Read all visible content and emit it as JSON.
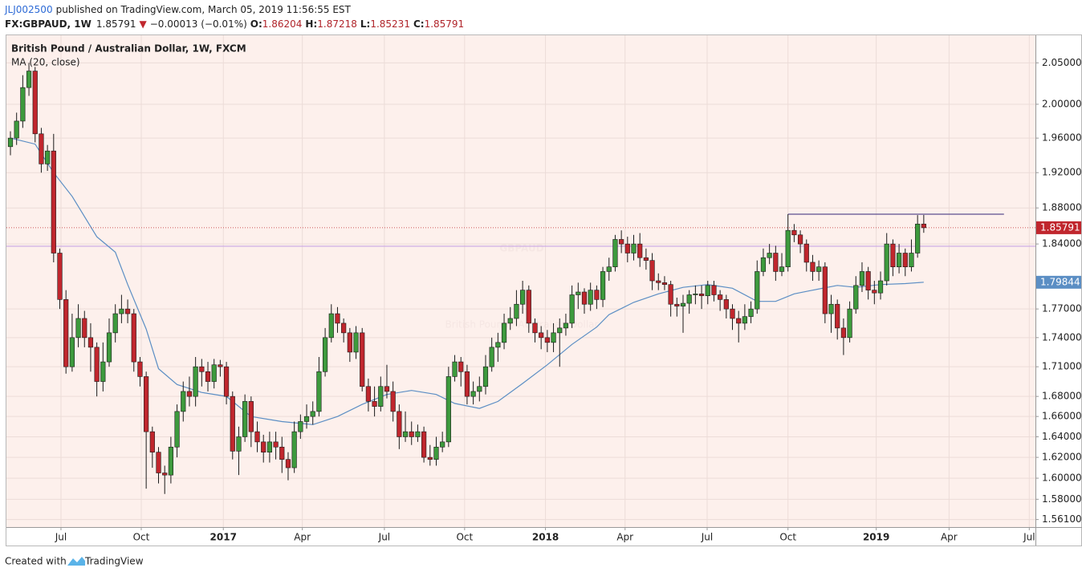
{
  "header": {
    "author": "JLJ002500",
    "published": "published on TradingView.com, March 05, 2019 11:56:55 EST",
    "symbol": "FX:GBPAUD, 1W",
    "arrow": "▼",
    "change": "−0.00013 (−0.01%)",
    "ohlc_labels": [
      "O:",
      "H:",
      "L:",
      "C:"
    ]
  },
  "chart_data": {
    "type": "candlestick",
    "title": "British Pound / Australian Dollar, 1W, FXCM",
    "watermark": "GBPAUD",
    "watermark_subtitle": "British Pound / Australian Dollar",
    "up_color": "#3d9a3d",
    "down_color": "#c0262d",
    "open": [
      1.95,
      1.96,
      1.98,
      2.02,
      2.04,
      1.965,
      1.93,
      1.945,
      1.83,
      1.78,
      1.71,
      1.74,
      1.76,
      1.74,
      1.73,
      1.695,
      1.715,
      1.745,
      1.765,
      1.77,
      1.765,
      1.715,
      1.7,
      1.645,
      1.625,
      1.605,
      1.603,
      1.63,
      1.665,
      1.685,
      1.68,
      1.71,
      1.705,
      1.695,
      1.712,
      1.71,
      1.68,
      1.626,
      1.64,
      1.675,
      1.645,
      1.635,
      1.625,
      1.635,
      1.63,
      1.618,
      1.61,
      1.645,
      1.655,
      1.66,
      1.665,
      1.705,
      1.74,
      1.765,
      1.755,
      1.745,
      1.725,
      1.745,
      1.69,
      1.675,
      1.67,
      1.69,
      1.685,
      1.665,
      1.64,
      1.645,
      1.64,
      1.645,
      1.62,
      1.618,
      1.63,
      1.635,
      1.7,
      1.715,
      1.705,
      1.68,
      1.685,
      1.69,
      1.71,
      1.73,
      1.735,
      1.755,
      1.76,
      1.775,
      1.79,
      1.755,
      1.745,
      1.74,
      1.735,
      1.745,
      1.75,
      1.755,
      1.785,
      1.788,
      1.775,
      1.79,
      1.78,
      1.81,
      1.815,
      1.845,
      1.84,
      1.83,
      1.84,
      1.825,
      1.822,
      1.8,
      1.798,
      1.796,
      1.775,
      1.773,
      1.776,
      1.785,
      1.786,
      1.784,
      1.795,
      1.785,
      1.78,
      1.77,
      1.76,
      1.755,
      1.762,
      1.77,
      1.81,
      1.825,
      1.83,
      1.81,
      1.815,
      1.855,
      1.85,
      1.84,
      1.82,
      1.81,
      1.815,
      1.765,
      1.775,
      1.75,
      1.74,
      1.77,
      1.795,
      1.81,
      1.79,
      1.787,
      1.8,
      1.84,
      1.815,
      1.83,
      1.815,
      1.83,
      1.86204
    ],
    "high": [
      1.968,
      1.99,
      2.035,
      2.05,
      2.045,
      1.972,
      1.952,
      1.965,
      1.835,
      1.79,
      1.765,
      1.775,
      1.768,
      1.755,
      1.735,
      1.735,
      1.76,
      1.775,
      1.785,
      1.78,
      1.77,
      1.72,
      1.705,
      1.65,
      1.63,
      1.612,
      1.64,
      1.672,
      1.695,
      1.7,
      1.72,
      1.718,
      1.715,
      1.718,
      1.717,
      1.715,
      1.685,
      1.65,
      1.682,
      1.68,
      1.655,
      1.642,
      1.645,
      1.645,
      1.64,
      1.625,
      1.655,
      1.662,
      1.672,
      1.675,
      1.72,
      1.75,
      1.775,
      1.772,
      1.76,
      1.75,
      1.752,
      1.75,
      1.698,
      1.69,
      1.7,
      1.712,
      1.695,
      1.672,
      1.665,
      1.655,
      1.652,
      1.65,
      1.632,
      1.64,
      1.645,
      1.71,
      1.722,
      1.72,
      1.712,
      1.695,
      1.7,
      1.722,
      1.74,
      1.745,
      1.765,
      1.772,
      1.79,
      1.8,
      1.795,
      1.76,
      1.752,
      1.748,
      1.755,
      1.76,
      1.765,
      1.795,
      1.798,
      1.792,
      1.798,
      1.795,
      1.815,
      1.825,
      1.85,
      1.855,
      1.848,
      1.85,
      1.852,
      1.835,
      1.83,
      1.808,
      1.805,
      1.8,
      1.782,
      1.785,
      1.79,
      1.795,
      1.795,
      1.8,
      1.8,
      1.79,
      1.785,
      1.775,
      1.768,
      1.775,
      1.778,
      1.822,
      1.835,
      1.84,
      1.838,
      1.83,
      1.873,
      1.862,
      1.855,
      1.845,
      1.828,
      1.822,
      1.82,
      1.785,
      1.78,
      1.76,
      1.778,
      1.805,
      1.82,
      1.815,
      1.8,
      1.81,
      1.852,
      1.845,
      1.84,
      1.835,
      1.845,
      1.872,
      1.87218
    ],
    "low": [
      1.94,
      1.952,
      1.972,
      2.01,
      1.955,
      1.92,
      1.922,
      1.82,
      1.77,
      1.703,
      1.705,
      1.73,
      1.73,
      1.705,
      1.68,
      1.685,
      1.71,
      1.735,
      1.755,
      1.755,
      1.705,
      1.69,
      1.59,
      1.61,
      1.595,
      1.585,
      1.595,
      1.62,
      1.655,
      1.67,
      1.67,
      1.69,
      1.685,
      1.688,
      1.7,
      1.672,
      1.618,
      1.603,
      1.635,
      1.63,
      1.625,
      1.615,
      1.615,
      1.618,
      1.605,
      1.598,
      1.605,
      1.638,
      1.648,
      1.652,
      1.66,
      1.7,
      1.735,
      1.745,
      1.735,
      1.715,
      1.718,
      1.685,
      1.665,
      1.66,
      1.665,
      1.678,
      1.655,
      1.628,
      1.635,
      1.632,
      1.635,
      1.615,
      1.612,
      1.612,
      1.625,
      1.63,
      1.695,
      1.69,
      1.672,
      1.672,
      1.675,
      1.682,
      1.705,
      1.715,
      1.728,
      1.748,
      1.752,
      1.765,
      1.745,
      1.735,
      1.728,
      1.725,
      1.725,
      1.71,
      1.742,
      1.75,
      1.77,
      1.765,
      1.768,
      1.77,
      1.772,
      1.8,
      1.81,
      1.83,
      1.82,
      1.822,
      1.815,
      1.812,
      1.79,
      1.79,
      1.79,
      1.762,
      1.762,
      1.745,
      1.765,
      1.775,
      1.77,
      1.775,
      1.778,
      1.768,
      1.76,
      1.748,
      1.735,
      1.748,
      1.755,
      1.765,
      1.805,
      1.818,
      1.8,
      1.805,
      1.81,
      1.842,
      1.83,
      1.81,
      1.8,
      1.8,
      1.755,
      1.745,
      1.738,
      1.722,
      1.735,
      1.765,
      1.788,
      1.78,
      1.775,
      1.78,
      1.795,
      1.805,
      1.808,
      1.805,
      1.81,
      1.825,
      1.85231
    ],
    "close": [
      1.96,
      1.98,
      2.02,
      2.04,
      1.965,
      1.93,
      1.945,
      1.83,
      1.78,
      1.71,
      1.74,
      1.76,
      1.74,
      1.73,
      1.695,
      1.715,
      1.745,
      1.765,
      1.77,
      1.765,
      1.715,
      1.7,
      1.645,
      1.625,
      1.605,
      1.603,
      1.63,
      1.665,
      1.685,
      1.68,
      1.71,
      1.705,
      1.695,
      1.712,
      1.71,
      1.68,
      1.626,
      1.64,
      1.675,
      1.645,
      1.635,
      1.625,
      1.635,
      1.63,
      1.618,
      1.61,
      1.645,
      1.655,
      1.66,
      1.665,
      1.705,
      1.74,
      1.765,
      1.755,
      1.745,
      1.725,
      1.745,
      1.69,
      1.675,
      1.67,
      1.69,
      1.685,
      1.665,
      1.64,
      1.645,
      1.64,
      1.645,
      1.62,
      1.618,
      1.63,
      1.635,
      1.7,
      1.715,
      1.705,
      1.68,
      1.685,
      1.69,
      1.71,
      1.73,
      1.735,
      1.755,
      1.76,
      1.775,
      1.79,
      1.755,
      1.745,
      1.74,
      1.735,
      1.745,
      1.75,
      1.755,
      1.785,
      1.788,
      1.775,
      1.79,
      1.78,
      1.81,
      1.815,
      1.845,
      1.84,
      1.83,
      1.84,
      1.825,
      1.822,
      1.8,
      1.798,
      1.796,
      1.775,
      1.773,
      1.776,
      1.785,
      1.786,
      1.784,
      1.795,
      1.785,
      1.78,
      1.77,
      1.76,
      1.755,
      1.762,
      1.77,
      1.81,
      1.825,
      1.83,
      1.81,
      1.815,
      1.855,
      1.85,
      1.84,
      1.82,
      1.81,
      1.815,
      1.765,
      1.775,
      1.75,
      1.74,
      1.77,
      1.795,
      1.81,
      1.79,
      1.787,
      1.8,
      1.84,
      1.815,
      1.83,
      1.815,
      1.83,
      1.86204,
      1.85791
    ],
    "ma": {
      "name": "MA (20, close)",
      "color": "#5b8ec4",
      "x": [
        0,
        4,
        7,
        10,
        14,
        17,
        19,
        22,
        24,
        27,
        31,
        35,
        39,
        44,
        49,
        53,
        57,
        61,
        65,
        69,
        72,
        76,
        79,
        83,
        87,
        91,
        95,
        97,
        101,
        105,
        109,
        113,
        117,
        121,
        124,
        127,
        130,
        134,
        137,
        141,
        145,
        148
      ],
      "values": [
        1.96,
        1.953,
        1.92,
        1.893,
        1.848,
        1.831,
        1.796,
        1.749,
        1.708,
        1.692,
        1.684,
        1.68,
        1.66,
        1.655,
        1.652,
        1.66,
        1.672,
        1.682,
        1.686,
        1.682,
        1.673,
        1.668,
        1.675,
        1.693,
        1.712,
        1.733,
        1.751,
        1.764,
        1.777,
        1.786,
        1.793,
        1.796,
        1.792,
        1.778,
        1.778,
        1.786,
        1.79,
        1.795,
        1.793,
        1.796,
        1.797,
        1.79844
      ]
    },
    "lines": [
      {
        "value": 1.873,
        "x": [
          126,
          161
        ],
        "color": "#5c4e8e"
      },
      {
        "value": 1.8375,
        "x": [
          -0.65,
          166.1
        ],
        "color": "#c9a6e4"
      }
    ],
    "log_scale": true,
    "grid": true,
    "xlim": [
      -0.65,
      166.1
    ],
    "ylim": [
      1.554,
      2.084
    ],
    "xticks": [
      {
        "value": 8.19,
        "label": "Jul"
      },
      {
        "value": 21.2,
        "label": "Oct"
      },
      {
        "value": 34.5,
        "label": "2017"
      },
      {
        "value": 47.3,
        "label": "Apr"
      },
      {
        "value": 60.6,
        "label": "Jul"
      },
      {
        "value": 73.6,
        "label": "Oct"
      },
      {
        "value": 86.7,
        "label": "2018"
      },
      {
        "value": 99.6,
        "label": "Apr"
      },
      {
        "value": 112.9,
        "label": "Jul"
      },
      {
        "value": 126.0,
        "label": "Oct"
      },
      {
        "value": 140.3,
        "label": "2019"
      },
      {
        "value": 152.1,
        "label": "Apr"
      },
      {
        "value": 165.1,
        "label": "Jul"
      }
    ],
    "yticks": [
      {
        "value": 2.05,
        "label": "2.05000"
      },
      {
        "value": 2.0,
        "label": "2.00000"
      },
      {
        "value": 1.96,
        "label": "1.96000"
      },
      {
        "value": 1.92,
        "label": "1.92000"
      },
      {
        "value": 1.88,
        "label": "1.88000"
      },
      {
        "value": 1.84,
        "label": "1.84000"
      },
      {
        "value": 1.77,
        "label": "1.77000"
      },
      {
        "value": 1.74,
        "label": "1.74000"
      },
      {
        "value": 1.71,
        "label": "1.71000"
      },
      {
        "value": 1.68,
        "label": "1.68000"
      },
      {
        "value": 1.66,
        "label": "1.66000"
      },
      {
        "value": 1.64,
        "label": "1.64000"
      },
      {
        "value": 1.62,
        "label": "1.62000"
      },
      {
        "value": 1.6,
        "label": "1.60000"
      },
      {
        "value": 1.58,
        "label": "1.58000"
      },
      {
        "value": 1.561,
        "label": "1.56100"
      }
    ]
  },
  "footer": {
    "created": "Created with",
    "brand": "TradingView"
  }
}
